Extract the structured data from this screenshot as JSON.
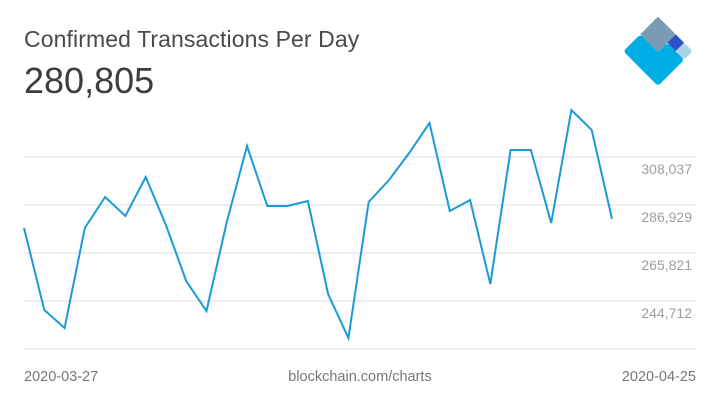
{
  "header": {
    "title": "Confirmed Transactions Per Day",
    "current_value": "280,805"
  },
  "footer": {
    "start_date": "2020-03-27",
    "source": "blockchain.com/charts",
    "end_date": "2020-04-25"
  },
  "colors": {
    "line": "#1a9bd7",
    "grid": "#dddddd",
    "logo": [
      "#7a9cb3",
      "#123863",
      "#2d52c4",
      "#00aee6",
      "#a9d1e6"
    ]
  },
  "chart_data": {
    "type": "line",
    "title": "Confirmed Transactions Per Day",
    "xlabel": "",
    "ylabel": "",
    "x": [
      "2020-03-27",
      "2020-03-28",
      "2020-03-29",
      "2020-03-30",
      "2020-03-31",
      "2020-04-01",
      "2020-04-02",
      "2020-04-03",
      "2020-04-04",
      "2020-04-05",
      "2020-04-06",
      "2020-04-07",
      "2020-04-08",
      "2020-04-09",
      "2020-04-10",
      "2020-04-11",
      "2020-04-12",
      "2020-04-13",
      "2020-04-14",
      "2020-04-15",
      "2020-04-16",
      "2020-04-17",
      "2020-04-18",
      "2020-04-19",
      "2020-04-20",
      "2020-04-21",
      "2020-04-22",
      "2020-04-23",
      "2020-04-24",
      "2020-04-25"
    ],
    "series": [
      {
        "name": "Confirmed Transactions Per Day",
        "values": [
          276800,
          240750,
          232830,
          276800,
          290430,
          282080,
          299230,
          278120,
          253490,
          240300,
          279440,
          312870,
          286480,
          286480,
          288680,
          247790,
          228440,
          288240,
          297910,
          309780,
          322970,
          284280,
          289120,
          252170,
          311110,
          311110,
          279000,
          328690,
          319900,
          280805
        ]
      }
    ],
    "yticks": [
      244712,
      265821,
      286929,
      308037
    ],
    "ytick_labels": [
      "244,712",
      "265,821",
      "286,929",
      "308,037"
    ],
    "ylim": [
      223604,
      336000
    ],
    "grid": true,
    "legend": "none"
  }
}
